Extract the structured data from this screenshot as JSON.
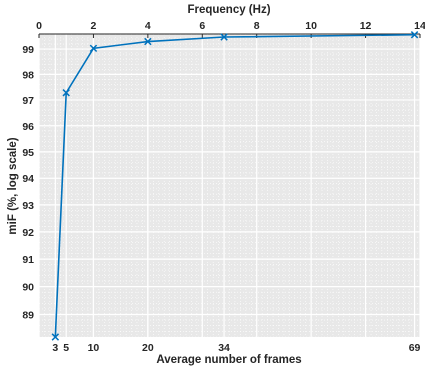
{
  "chart_data": {
    "type": "line",
    "title": "",
    "xlabel": "Average number of frames",
    "x2label": "Frequency (Hz)",
    "ylabel": "miF (%,  log scale)",
    "x_range": [
      0,
      70
    ],
    "x2_range": [
      0,
      14
    ],
    "y_range": [
      88.2,
      99.6
    ],
    "x_ticks": [
      3,
      5,
      10,
      20,
      34,
      69
    ],
    "x2_ticks": [
      0,
      2,
      4,
      6,
      8,
      10,
      12,
      14
    ],
    "y_ticks": [
      89,
      90,
      91,
      92,
      93,
      94,
      95,
      96,
      97,
      98,
      99
    ],
    "x_tick_labels": [
      "3",
      "5",
      "10",
      "20",
      "34",
      "69"
    ],
    "x2_tick_labels": [
      "0",
      "2",
      "4",
      "6",
      "8",
      "10",
      "12",
      "14"
    ],
    "y_tick_labels": [
      "89",
      "90",
      "91",
      "92",
      "93",
      "94",
      "95",
      "96",
      "97",
      "98",
      "99"
    ],
    "y_scale": "log",
    "grid": true,
    "legend": "none",
    "series": [
      {
        "x": [
          3,
          5,
          10,
          20,
          34,
          69
        ],
        "y": [
          88.2,
          97.28,
          99.03,
          99.3,
          99.48,
          99.57
        ],
        "marker": "x",
        "color": "#0072BD"
      }
    ]
  },
  "colors": {
    "plot_background": "#e8e8e8",
    "grid": "#ffffff",
    "line": "#0072BD",
    "text": "#262626"
  }
}
